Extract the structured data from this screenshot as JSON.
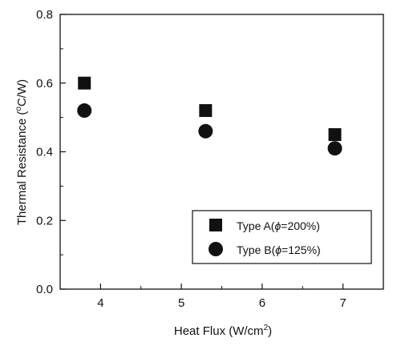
{
  "chart_data": {
    "type": "scatter",
    "title": "",
    "xlabel": "Heat Flux (W/cm",
    "xlabel_sup": "2",
    "xlabel_suffix": ")",
    "ylabel": "Thermal Resistance (",
    "ylabel_sup": "o",
    "ylabel_suffix": "C/W)",
    "xlim": [
      3.5,
      7.5
    ],
    "ylim": [
      0.0,
      0.8
    ],
    "xticks": [
      4,
      5,
      6,
      7
    ],
    "xtick_labels": [
      "4",
      "5",
      "6",
      "7"
    ],
    "yticks": [
      0.0,
      0.2,
      0.4,
      0.6,
      0.8
    ],
    "ytick_labels": [
      "0.0",
      "0.2",
      "0.4",
      "0.6",
      "0.8"
    ],
    "grid": false,
    "legend_position": "bottom-right",
    "series": [
      {
        "name_prefix": "Type A(",
        "name_symbol": "ϕ",
        "name_suffix": "=200%)",
        "marker": "square",
        "color": "#111111",
        "x": [
          3.8,
          5.3,
          6.9
        ],
        "y": [
          0.6,
          0.52,
          0.45
        ]
      },
      {
        "name_prefix": "Type B(",
        "name_symbol": "ϕ",
        "name_suffix": "=125%)",
        "marker": "circle",
        "color": "#111111",
        "x": [
          3.8,
          5.3,
          6.9
        ],
        "y": [
          0.52,
          0.46,
          0.41
        ]
      }
    ]
  }
}
